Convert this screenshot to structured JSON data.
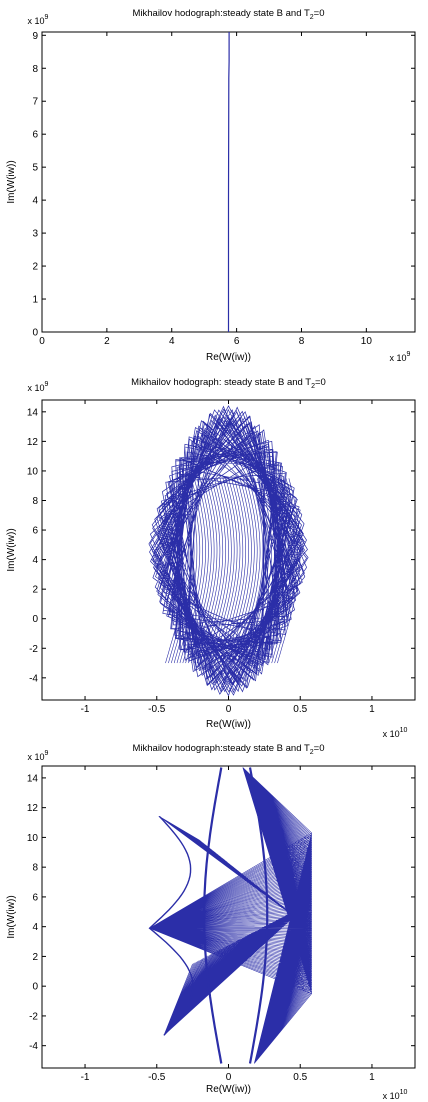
{
  "chart_data": [
    {
      "type": "line",
      "title_text": "Mikhailov hodograph:steady state B and T",
      "title_sub": "2",
      "title_tail": "=0",
      "xlabel": "Re(W(iw))",
      "ylabel": "Im(W(iw))",
      "x_multiplier": {
        "base": "x 10",
        "exp": "9"
      },
      "y_multiplier": {
        "base": "x 10",
        "exp": "9"
      },
      "xlim": [
        0,
        11.5
      ],
      "ylim": [
        0,
        9.1
      ],
      "xticks": [
        0,
        2,
        4,
        6,
        8,
        10
      ],
      "xtick_labels": [
        "0",
        "2",
        "4",
        "6",
        "8",
        "10"
      ],
      "yticks": [
        0,
        1,
        2,
        3,
        4,
        5,
        6,
        7,
        8,
        9
      ],
      "ytick_labels": [
        "0",
        "1",
        "2",
        "3",
        "4",
        "5",
        "6",
        "7",
        "8",
        "9"
      ],
      "grid": false,
      "color": "#2b2ea8",
      "series": [
        {
          "x": [
            5.75,
            5.75,
            5.76,
            5.76,
            5.77,
            5.77
          ],
          "y": [
            0,
            4,
            7.6,
            7.7,
            8.2,
            9.1
          ]
        }
      ]
    },
    {
      "type": "line",
      "title_text": "Mikhailov hodograph: steady state B and T",
      "title_sub": "2",
      "title_tail": "=0",
      "xlabel": "Re(W(iw))",
      "ylabel": "Im(W(iw))",
      "x_multiplier": {
        "base": "x 10",
        "exp": "10"
      },
      "y_multiplier": {
        "base": "x 10",
        "exp": "9"
      },
      "xlim": [
        -1.3,
        1.3
      ],
      "ylim": [
        -5.5,
        14.8
      ],
      "xticks": [
        -1,
        -0.5,
        0,
        0.5,
        1
      ],
      "xtick_labels": [
        "-1",
        "-0.5",
        "0",
        "0.5",
        "1"
      ],
      "yticks": [
        -4,
        -2,
        0,
        2,
        4,
        6,
        8,
        10,
        12,
        14
      ],
      "ytick_labels": [
        "-4",
        "-2",
        "0",
        "2",
        "4",
        "6",
        "8",
        "10",
        "12",
        "14"
      ],
      "grid": false,
      "color": "#2b2ea8",
      "curve": "mesh",
      "center": [
        0,
        4.6
      ],
      "rx": [
        0.56,
        0.56
      ],
      "ry": [
        9.8,
        9.8
      ],
      "steps": 80
    },
    {
      "type": "line",
      "title_text": "Mikhailov hodograph:steady state B and T",
      "title_sub": "2",
      "title_tail": "=0",
      "xlabel": "Re(W(iw))",
      "ylabel": "Im(W(iw))",
      "x_multiplier": {
        "base": "x 10",
        "exp": "10"
      },
      "y_multiplier": {
        "base": "x 10",
        "exp": "9"
      },
      "xlim": [
        -1.3,
        1.3
      ],
      "ylim": [
        -5.5,
        14.8
      ],
      "xticks": [
        -1,
        -0.5,
        0,
        0.5,
        1
      ],
      "xtick_labels": [
        "-1",
        "-0.5",
        "0",
        "0.5",
        "1"
      ],
      "yticks": [
        -4,
        -2,
        0,
        2,
        4,
        6,
        8,
        10,
        12,
        14
      ],
      "ytick_labels": [
        "-4",
        "-2",
        "0",
        "2",
        "4",
        "6",
        "8",
        "10",
        "12",
        "14"
      ],
      "grid": false,
      "color": "#2b2ea8",
      "curve": "fan",
      "left_tip": [
        -0.55,
        3.9
      ],
      "upper_tip": [
        -0.48,
        11.4
      ],
      "lower_tip": [
        -0.45,
        -3.3
      ],
      "top_peak": [
        0.1,
        14.7
      ],
      "bottom_peak": [
        0.18,
        -5.2
      ],
      "right_edge_x": 0.58,
      "right_edge_y": [
        -0.5,
        10.3
      ],
      "steps": 90
    }
  ]
}
